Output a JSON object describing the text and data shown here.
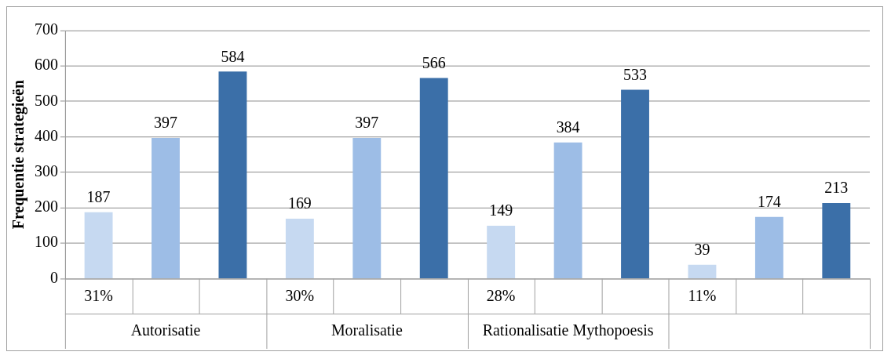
{
  "chart_data": {
    "type": "bar",
    "ylabel": "Frequentie strategieën",
    "categories": [
      "31%",
      null,
      null,
      "30%",
      null,
      null,
      "28%",
      null,
      null,
      "11%",
      null,
      null
    ],
    "values": [
      187,
      397,
      584,
      169,
      397,
      566,
      149,
      384,
      533,
      39,
      174,
      213
    ],
    "colors": [
      "#c6d9f1",
      "#9dbde6",
      "#3b6fa8",
      "#c6d9f1",
      "#9dbde6",
      "#3b6fa8",
      "#c6d9f1",
      "#9dbde6",
      "#3b6fa8",
      "#c6d9f1",
      "#9dbde6",
      "#3b6fa8"
    ],
    "annotations": [
      "Autorisatie",
      "Moralisatie",
      "Rationalisatie Mythopoesis"
    ],
    "ylim": [
      0,
      700
    ],
    "yticks": [
      0,
      100,
      200,
      300,
      400,
      500,
      600,
      700
    ],
    "grid": "y",
    "data_labels": true,
    "legend": false
  }
}
